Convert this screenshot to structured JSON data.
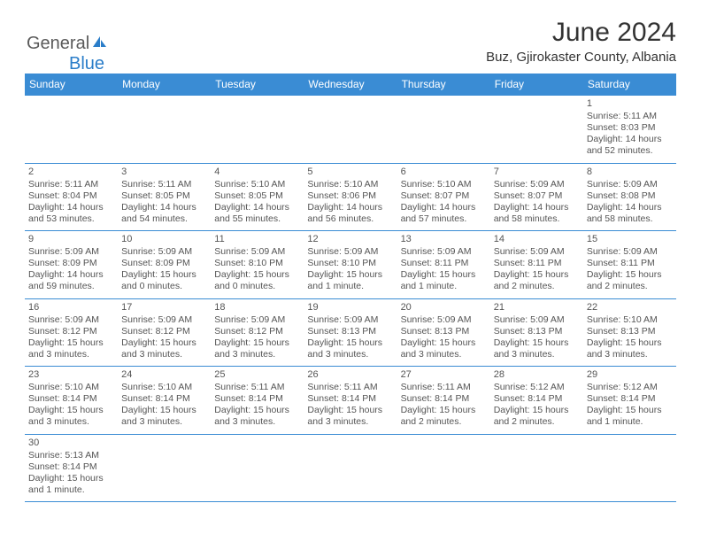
{
  "brand": {
    "part1": "General",
    "part2": "Blue"
  },
  "header": {
    "month_title": "June 2024",
    "location": "Buz, Gjirokaster County, Albania"
  },
  "colors": {
    "header_bg": "#3a8cd4",
    "header_text": "#ffffff",
    "border": "#3a8cd4",
    "text": "#555555",
    "title": "#333333"
  },
  "days_of_week": [
    "Sunday",
    "Monday",
    "Tuesday",
    "Wednesday",
    "Thursday",
    "Friday",
    "Saturday"
  ],
  "cells": [
    [
      null,
      null,
      null,
      null,
      null,
      null,
      {
        "n": "1",
        "sr": "Sunrise: 5:11 AM",
        "ss": "Sunset: 8:03 PM",
        "dl": "Daylight: 14 hours and 52 minutes."
      }
    ],
    [
      {
        "n": "2",
        "sr": "Sunrise: 5:11 AM",
        "ss": "Sunset: 8:04 PM",
        "dl": "Daylight: 14 hours and 53 minutes."
      },
      {
        "n": "3",
        "sr": "Sunrise: 5:11 AM",
        "ss": "Sunset: 8:05 PM",
        "dl": "Daylight: 14 hours and 54 minutes."
      },
      {
        "n": "4",
        "sr": "Sunrise: 5:10 AM",
        "ss": "Sunset: 8:05 PM",
        "dl": "Daylight: 14 hours and 55 minutes."
      },
      {
        "n": "5",
        "sr": "Sunrise: 5:10 AM",
        "ss": "Sunset: 8:06 PM",
        "dl": "Daylight: 14 hours and 56 minutes."
      },
      {
        "n": "6",
        "sr": "Sunrise: 5:10 AM",
        "ss": "Sunset: 8:07 PM",
        "dl": "Daylight: 14 hours and 57 minutes."
      },
      {
        "n": "7",
        "sr": "Sunrise: 5:09 AM",
        "ss": "Sunset: 8:07 PM",
        "dl": "Daylight: 14 hours and 58 minutes."
      },
      {
        "n": "8",
        "sr": "Sunrise: 5:09 AM",
        "ss": "Sunset: 8:08 PM",
        "dl": "Daylight: 14 hours and 58 minutes."
      }
    ],
    [
      {
        "n": "9",
        "sr": "Sunrise: 5:09 AM",
        "ss": "Sunset: 8:09 PM",
        "dl": "Daylight: 14 hours and 59 minutes."
      },
      {
        "n": "10",
        "sr": "Sunrise: 5:09 AM",
        "ss": "Sunset: 8:09 PM",
        "dl": "Daylight: 15 hours and 0 minutes."
      },
      {
        "n": "11",
        "sr": "Sunrise: 5:09 AM",
        "ss": "Sunset: 8:10 PM",
        "dl": "Daylight: 15 hours and 0 minutes."
      },
      {
        "n": "12",
        "sr": "Sunrise: 5:09 AM",
        "ss": "Sunset: 8:10 PM",
        "dl": "Daylight: 15 hours and 1 minute."
      },
      {
        "n": "13",
        "sr": "Sunrise: 5:09 AM",
        "ss": "Sunset: 8:11 PM",
        "dl": "Daylight: 15 hours and 1 minute."
      },
      {
        "n": "14",
        "sr": "Sunrise: 5:09 AM",
        "ss": "Sunset: 8:11 PM",
        "dl": "Daylight: 15 hours and 2 minutes."
      },
      {
        "n": "15",
        "sr": "Sunrise: 5:09 AM",
        "ss": "Sunset: 8:11 PM",
        "dl": "Daylight: 15 hours and 2 minutes."
      }
    ],
    [
      {
        "n": "16",
        "sr": "Sunrise: 5:09 AM",
        "ss": "Sunset: 8:12 PM",
        "dl": "Daylight: 15 hours and 3 minutes."
      },
      {
        "n": "17",
        "sr": "Sunrise: 5:09 AM",
        "ss": "Sunset: 8:12 PM",
        "dl": "Daylight: 15 hours and 3 minutes."
      },
      {
        "n": "18",
        "sr": "Sunrise: 5:09 AM",
        "ss": "Sunset: 8:12 PM",
        "dl": "Daylight: 15 hours and 3 minutes."
      },
      {
        "n": "19",
        "sr": "Sunrise: 5:09 AM",
        "ss": "Sunset: 8:13 PM",
        "dl": "Daylight: 15 hours and 3 minutes."
      },
      {
        "n": "20",
        "sr": "Sunrise: 5:09 AM",
        "ss": "Sunset: 8:13 PM",
        "dl": "Daylight: 15 hours and 3 minutes."
      },
      {
        "n": "21",
        "sr": "Sunrise: 5:09 AM",
        "ss": "Sunset: 8:13 PM",
        "dl": "Daylight: 15 hours and 3 minutes."
      },
      {
        "n": "22",
        "sr": "Sunrise: 5:10 AM",
        "ss": "Sunset: 8:13 PM",
        "dl": "Daylight: 15 hours and 3 minutes."
      }
    ],
    [
      {
        "n": "23",
        "sr": "Sunrise: 5:10 AM",
        "ss": "Sunset: 8:14 PM",
        "dl": "Daylight: 15 hours and 3 minutes."
      },
      {
        "n": "24",
        "sr": "Sunrise: 5:10 AM",
        "ss": "Sunset: 8:14 PM",
        "dl": "Daylight: 15 hours and 3 minutes."
      },
      {
        "n": "25",
        "sr": "Sunrise: 5:11 AM",
        "ss": "Sunset: 8:14 PM",
        "dl": "Daylight: 15 hours and 3 minutes."
      },
      {
        "n": "26",
        "sr": "Sunrise: 5:11 AM",
        "ss": "Sunset: 8:14 PM",
        "dl": "Daylight: 15 hours and 3 minutes."
      },
      {
        "n": "27",
        "sr": "Sunrise: 5:11 AM",
        "ss": "Sunset: 8:14 PM",
        "dl": "Daylight: 15 hours and 2 minutes."
      },
      {
        "n": "28",
        "sr": "Sunrise: 5:12 AM",
        "ss": "Sunset: 8:14 PM",
        "dl": "Daylight: 15 hours and 2 minutes."
      },
      {
        "n": "29",
        "sr": "Sunrise: 5:12 AM",
        "ss": "Sunset: 8:14 PM",
        "dl": "Daylight: 15 hours and 1 minute."
      }
    ],
    [
      {
        "n": "30",
        "sr": "Sunrise: 5:13 AM",
        "ss": "Sunset: 8:14 PM",
        "dl": "Daylight: 15 hours and 1 minute."
      },
      null,
      null,
      null,
      null,
      null,
      null
    ]
  ]
}
